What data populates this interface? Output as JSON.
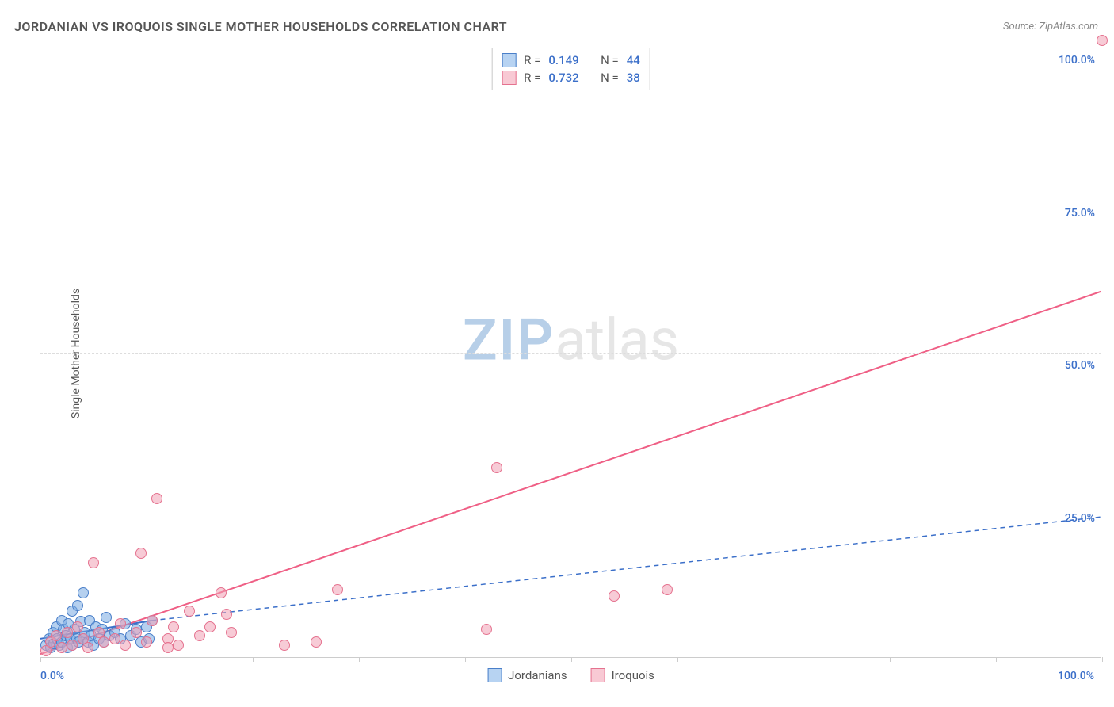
{
  "title": "JORDANIAN VS IROQUOIS SINGLE MOTHER HOUSEHOLDS CORRELATION CHART",
  "source_label": "Source:",
  "source_name": "ZipAtlas.com",
  "ylabel": "Single Mother Households",
  "watermark_a": "ZIP",
  "watermark_b": "atlas",
  "chart": {
    "type": "scatter",
    "xlim": [
      0,
      100
    ],
    "ylim": [
      0,
      100
    ],
    "background_color": "#ffffff",
    "grid_color": "#dddddd",
    "grid_dash": "4 4",
    "axis_color": "#cccccc",
    "xtick_positions": [
      0,
      10,
      20,
      30,
      40,
      50,
      60,
      70,
      80,
      90,
      100
    ],
    "xtick_labels": {
      "0": "0.0%",
      "100": "100.0%"
    },
    "ytick_positions": [
      25,
      50,
      75,
      100
    ],
    "ytick_labels": {
      "25": "25.0%",
      "50": "50.0%",
      "75": "75.0%",
      "100": "100.0%"
    },
    "ytick_color": "#3b6fc9",
    "xtick_color": "#3b6fc9"
  },
  "legend_top": [
    {
      "swatch_fill": "#b7d3f2",
      "swatch_border": "#4a7fc9",
      "r_label": "R =",
      "r_value": "0.149",
      "n_label": "N =",
      "n_value": "44"
    },
    {
      "swatch_fill": "#f8c9d4",
      "swatch_border": "#e5728f",
      "r_label": "R =",
      "r_value": "0.732",
      "n_label": "N =",
      "n_value": "38"
    }
  ],
  "legend_bottom": [
    {
      "swatch_fill": "#b7d3f2",
      "swatch_border": "#4a7fc9",
      "label": "Jordanians"
    },
    {
      "swatch_fill": "#f8c9d4",
      "swatch_border": "#e5728f",
      "label": "Iroquois"
    }
  ],
  "series": [
    {
      "name": "Jordanians",
      "point_fill": "rgba(120,170,225,0.55)",
      "point_border": "#4a7fc9",
      "regression": {
        "x1": 0,
        "y1": 3.0,
        "x2": 10.5,
        "y2": 6.0,
        "solid": true,
        "color": "#3b6fc9",
        "width": 2,
        "ext_x2": 100,
        "ext_y2": 23.0
      },
      "points": [
        [
          0.5,
          2.0
        ],
        [
          0.8,
          3.0
        ],
        [
          1.0,
          1.5
        ],
        [
          1.2,
          4.0
        ],
        [
          1.3,
          2.2
        ],
        [
          1.5,
          5.0
        ],
        [
          1.6,
          3.0
        ],
        [
          1.8,
          2.0
        ],
        [
          2.0,
          6.0
        ],
        [
          2.0,
          2.5
        ],
        [
          2.2,
          4.5
        ],
        [
          2.4,
          3.5
        ],
        [
          2.5,
          1.5
        ],
        [
          2.6,
          5.5
        ],
        [
          2.8,
          3.0
        ],
        [
          3.0,
          7.5
        ],
        [
          3.0,
          2.0
        ],
        [
          3.2,
          4.5
        ],
        [
          3.4,
          3.0
        ],
        [
          3.5,
          8.5
        ],
        [
          3.6,
          2.5
        ],
        [
          3.8,
          5.8
        ],
        [
          4.0,
          3.0
        ],
        [
          4.0,
          10.5
        ],
        [
          4.2,
          4.0
        ],
        [
          4.5,
          2.5
        ],
        [
          4.6,
          6.0
        ],
        [
          4.8,
          3.5
        ],
        [
          5.0,
          2.0
        ],
        [
          5.2,
          5.0
        ],
        [
          5.5,
          3.0
        ],
        [
          5.8,
          4.5
        ],
        [
          6.0,
          2.5
        ],
        [
          6.2,
          6.5
        ],
        [
          6.5,
          3.5
        ],
        [
          7.0,
          4.0
        ],
        [
          7.5,
          3.0
        ],
        [
          8.0,
          5.5
        ],
        [
          8.5,
          3.5
        ],
        [
          9.0,
          4.5
        ],
        [
          9.5,
          2.5
        ],
        [
          10.0,
          5.0
        ],
        [
          10.2,
          3.0
        ],
        [
          10.5,
          6.0
        ]
      ]
    },
    {
      "name": "Iroquois",
      "point_fill": "rgba(240,160,180,0.55)",
      "point_border": "#e5728f",
      "regression": {
        "x1": 0,
        "y1": 0.5,
        "x2": 100,
        "y2": 60.0,
        "solid": true,
        "color": "#ef5f85",
        "width": 2
      },
      "points": [
        [
          0.5,
          1.0
        ],
        [
          1.0,
          2.5
        ],
        [
          1.5,
          3.5
        ],
        [
          2.0,
          1.5
        ],
        [
          2.5,
          4.0
        ],
        [
          3.0,
          2.0
        ],
        [
          3.5,
          5.0
        ],
        [
          4.0,
          3.0
        ],
        [
          4.5,
          1.5
        ],
        [
          5.0,
          15.5
        ],
        [
          5.5,
          4.0
        ],
        [
          6.0,
          2.5
        ],
        [
          7.0,
          3.0
        ],
        [
          7.5,
          5.5
        ],
        [
          8.0,
          2.0
        ],
        [
          9.0,
          4.0
        ],
        [
          9.5,
          17.0
        ],
        [
          10.0,
          2.5
        ],
        [
          10.5,
          6.0
        ],
        [
          11.0,
          26.0
        ],
        [
          12.0,
          3.0
        ],
        [
          12.0,
          1.5
        ],
        [
          12.5,
          5.0
        ],
        [
          13.0,
          2.0
        ],
        [
          14.0,
          7.5
        ],
        [
          15.0,
          3.5
        ],
        [
          16.0,
          5.0
        ],
        [
          17.0,
          10.5
        ],
        [
          17.5,
          7.0
        ],
        [
          18.0,
          4.0
        ],
        [
          23.0,
          2.0
        ],
        [
          26.0,
          2.5
        ],
        [
          28.0,
          11.0
        ],
        [
          42.0,
          4.5
        ],
        [
          43.0,
          31.0
        ],
        [
          54.0,
          10.0
        ],
        [
          59.0,
          11.0
        ],
        [
          100.0,
          101.0
        ]
      ]
    }
  ]
}
